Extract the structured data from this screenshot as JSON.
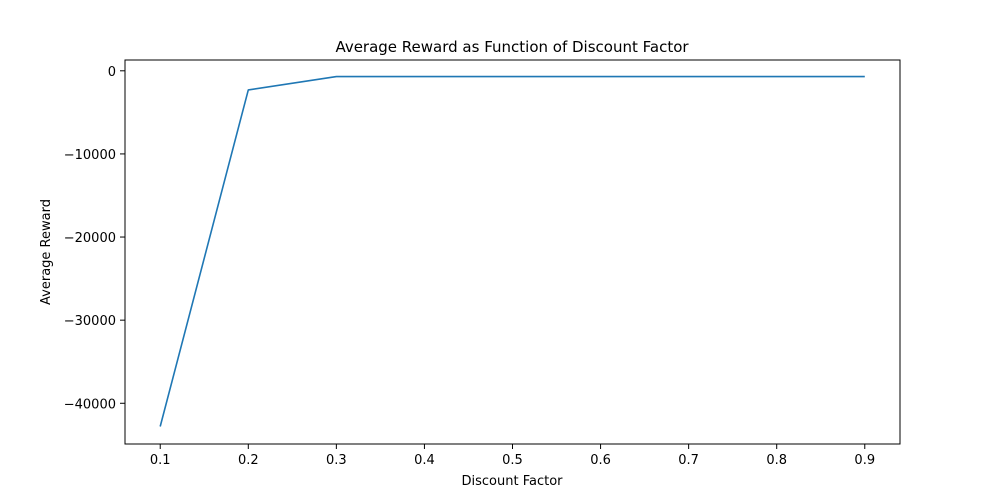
{
  "chart_data": {
    "type": "line",
    "title": "Average Reward as Function of Discount Factor",
    "xlabel": "Discount Factor",
    "ylabel": "Average Reward",
    "x": [
      0.1,
      0.2,
      0.3,
      0.4,
      0.5,
      0.6,
      0.7,
      0.8,
      0.9
    ],
    "series": [
      {
        "name": "",
        "color": "#1f77b4",
        "values": [
          -42800,
          -2300,
          -700,
          -700,
          -700,
          -700,
          -700,
          -700,
          -700
        ]
      }
    ],
    "xlim": [
      0.06,
      0.94
    ],
    "ylim": [
      -44900,
      1300
    ],
    "xticks": [
      0.1,
      0.2,
      0.3,
      0.4,
      0.5,
      0.6,
      0.7,
      0.8,
      0.9
    ],
    "xtick_labels": [
      "0.1",
      "0.2",
      "0.3",
      "0.4",
      "0.5",
      "0.6",
      "0.7",
      "0.8",
      "0.9"
    ],
    "yticks": [
      0,
      -10000,
      -20000,
      -30000,
      -40000
    ],
    "ytick_labels": [
      "0",
      "−10000",
      "−20000",
      "−30000",
      "−40000"
    ],
    "grid": false,
    "legend": false
  }
}
